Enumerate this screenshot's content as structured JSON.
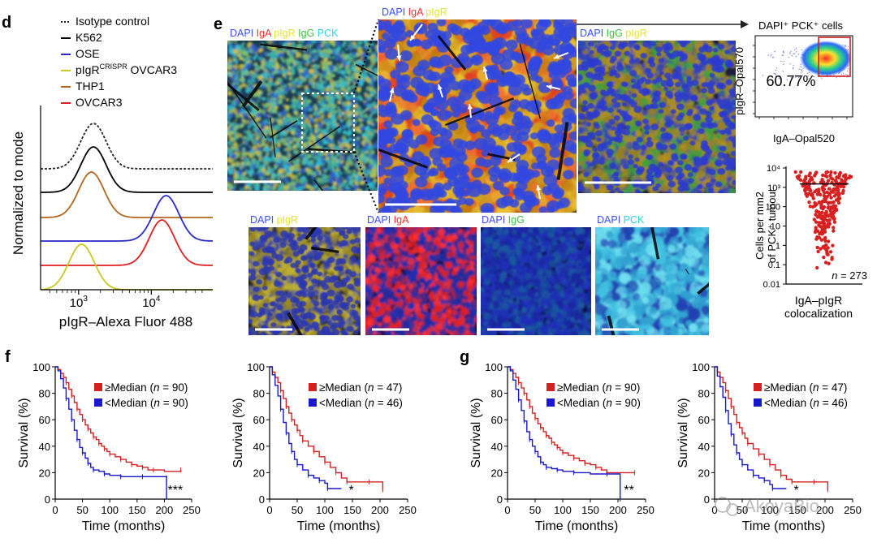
{
  "panel_letters": {
    "d": "d",
    "e": "e",
    "f": "f",
    "g": "g"
  },
  "chart_data": [
    {
      "id": "d",
      "type": "histogram",
      "xlabel": "pIgR–Alexa Fluor 488",
      "ylabel": "Normalized to mode",
      "x_scale": "log",
      "x_ticks": [
        {
          "value": 1000,
          "base": "10",
          "exp": "3"
        },
        {
          "value": 10000,
          "base": "10",
          "exp": "4"
        }
      ],
      "legend_position": "top-left",
      "series": [
        {
          "name": "Isotype control",
          "color": "#222222",
          "dashed": true,
          "peak": 1600
        },
        {
          "name": "K562",
          "color": "#000000",
          "dashed": false,
          "peak": 1600
        },
        {
          "name": "OSE",
          "color": "#2a2ac8",
          "dashed": false,
          "peak": 16000
        },
        {
          "name": "pIgR",
          "name_sup": "CRISPR",
          "name_tail": " OVCAR3",
          "color": "#c8c820",
          "dashed": false,
          "peak": 1100
        },
        {
          "name": "THP1",
          "color": "#b5651d",
          "dashed": false,
          "peak": 1500
        },
        {
          "name": "OVCAR3",
          "color": "#e02020",
          "dashed": false,
          "peak": 14000
        }
      ]
    },
    {
      "id": "e-scatter",
      "type": "scatter",
      "title": "DAPI⁺ PCK⁺ cells",
      "xlabel": "IgA–Opal520",
      "ylabel": "pIgR–Opal570",
      "gate_percent": "60.77%"
    },
    {
      "id": "e-dot",
      "type": "dot",
      "ylabel_lines": [
        "Cells per mm2",
        "of PCK⁺ tumour"
      ],
      "y_scale": "log",
      "y_ticks": [
        "10⁴",
        "10³",
        "100",
        "10",
        "1",
        "0.1",
        "0.01"
      ],
      "y_range": [
        0.01,
        10000
      ],
      "xlabel_lines": [
        "IgA–pIgR",
        "colocalization"
      ],
      "n_label": "n",
      "n_value": " = 273"
    },
    {
      "id": "f-left",
      "type": "line",
      "xlabel": "Time (months)",
      "ylabel": "Survival (%)",
      "x_range": [
        0,
        250
      ],
      "y_range": [
        0,
        100
      ],
      "x_ticks": [
        "0",
        "50",
        "100",
        "150",
        "200",
        "250"
      ],
      "y_ticks": [
        "0",
        "20",
        "40",
        "60",
        "80",
        "100"
      ],
      "significance": "***",
      "series": [
        {
          "name": "≥Median",
          "n": "90",
          "color": "#d42020",
          "points": [
            [
              0,
              100
            ],
            [
              5,
              98
            ],
            [
              10,
              95
            ],
            [
              15,
              92
            ],
            [
              20,
              88
            ],
            [
              25,
              83
            ],
            [
              30,
              78
            ],
            [
              35,
              73
            ],
            [
              40,
              68
            ],
            [
              45,
              64
            ],
            [
              50,
              60
            ],
            [
              55,
              56
            ],
            [
              60,
              53
            ],
            [
              65,
              50
            ],
            [
              70,
              47
            ],
            [
              75,
              45
            ],
            [
              80,
              42
            ],
            [
              85,
              40
            ],
            [
              90,
              38
            ],
            [
              95,
              36
            ],
            [
              100,
              34
            ],
            [
              110,
              32
            ],
            [
              120,
              30
            ],
            [
              130,
              28
            ],
            [
              140,
              26
            ],
            [
              150,
              25
            ],
            [
              160,
              24
            ],
            [
              170,
              22
            ],
            [
              180,
              22
            ],
            [
              200,
              21
            ],
            [
              230,
              22
            ]
          ]
        },
        {
          "name": "<Median",
          "n": "90",
          "color": "#1818cc",
          "points": [
            [
              0,
              100
            ],
            [
              5,
              97
            ],
            [
              10,
              91
            ],
            [
              15,
              84
            ],
            [
              20,
              76
            ],
            [
              25,
              68
            ],
            [
              30,
              60
            ],
            [
              35,
              52
            ],
            [
              40,
              45
            ],
            [
              45,
              39
            ],
            [
              50,
              35
            ],
            [
              55,
              31
            ],
            [
              60,
              27
            ],
            [
              65,
              24
            ],
            [
              70,
              22
            ],
            [
              80,
              21
            ],
            [
              90,
              19
            ],
            [
              100,
              18
            ],
            [
              120,
              17
            ],
            [
              140,
              17
            ],
            [
              160,
              17
            ],
            [
              180,
              17
            ],
            [
              204,
              16
            ],
            [
              204,
              0
            ]
          ]
        }
      ]
    },
    {
      "id": "f-right",
      "type": "line",
      "xlabel": "Time (months)",
      "ylabel": "Survival (%)",
      "x_range": [
        0,
        250
      ],
      "y_range": [
        0,
        100
      ],
      "x_ticks": [
        "0",
        "50",
        "100",
        "150",
        "200",
        "250"
      ],
      "y_ticks": [
        "0",
        "20",
        "40",
        "60",
        "80",
        "100"
      ],
      "significance": "*",
      "series": [
        {
          "name": "≥Median",
          "n": "47",
          "color": "#d42020",
          "points": [
            [
              0,
              100
            ],
            [
              5,
              96
            ],
            [
              10,
              92
            ],
            [
              15,
              88
            ],
            [
              20,
              82
            ],
            [
              25,
              76
            ],
            [
              30,
              70
            ],
            [
              35,
              65
            ],
            [
              40,
              60
            ],
            [
              45,
              56
            ],
            [
              50,
              52
            ],
            [
              55,
              48
            ],
            [
              60,
              44
            ],
            [
              70,
              40
            ],
            [
              80,
              36
            ],
            [
              90,
              32
            ],
            [
              100,
              28
            ],
            [
              110,
              24
            ],
            [
              120,
              20
            ],
            [
              130,
              16
            ],
            [
              140,
              13
            ],
            [
              150,
              13
            ],
            [
              180,
              13
            ],
            [
              205,
              13
            ],
            [
              205,
              7
            ]
          ]
        },
        {
          "name": "<Median",
          "n": "46",
          "color": "#1818cc",
          "points": [
            [
              0,
              100
            ],
            [
              5,
              94
            ],
            [
              10,
              86
            ],
            [
              15,
              78
            ],
            [
              20,
              68
            ],
            [
              25,
              58
            ],
            [
              30,
              50
            ],
            [
              35,
              42
            ],
            [
              40,
              36
            ],
            [
              45,
              30
            ],
            [
              50,
              26
            ],
            [
              60,
              22
            ],
            [
              70,
              18
            ],
            [
              80,
              16
            ],
            [
              90,
              14
            ],
            [
              100,
              12
            ],
            [
              105,
              8
            ],
            [
              130,
              8
            ]
          ]
        }
      ]
    },
    {
      "id": "g-left",
      "type": "line",
      "xlabel": "Time (months)",
      "ylabel": "Survival (%)",
      "x_range": [
        0,
        250
      ],
      "y_range": [
        0,
        100
      ],
      "x_ticks": [
        "0",
        "50",
        "100",
        "150",
        "200",
        "250"
      ],
      "y_ticks": [
        "0",
        "20",
        "40",
        "60",
        "80",
        "100"
      ],
      "significance": "**",
      "series": [
        {
          "name": "≥Median",
          "n": "90",
          "color": "#d42020",
          "points": [
            [
              0,
              100
            ],
            [
              5,
              98
            ],
            [
              10,
              95
            ],
            [
              15,
              92
            ],
            [
              20,
              88
            ],
            [
              25,
              84
            ],
            [
              30,
              80
            ],
            [
              35,
              75
            ],
            [
              40,
              70
            ],
            [
              45,
              65
            ],
            [
              50,
              61
            ],
            [
              55,
              57
            ],
            [
              60,
              54
            ],
            [
              65,
              51
            ],
            [
              70,
              48
            ],
            [
              75,
              46
            ],
            [
              80,
              43
            ],
            [
              85,
              41
            ],
            [
              90,
              39
            ],
            [
              95,
              37
            ],
            [
              100,
              35
            ],
            [
              110,
              33
            ],
            [
              120,
              31
            ],
            [
              130,
              29
            ],
            [
              140,
              27
            ],
            [
              150,
              26
            ],
            [
              160,
              24
            ],
            [
              170,
              22
            ],
            [
              180,
              20
            ],
            [
              200,
              20
            ],
            [
              230,
              20
            ]
          ]
        },
        {
          "name": "<Median",
          "n": "90",
          "color": "#1818cc",
          "points": [
            [
              0,
              100
            ],
            [
              5,
              97
            ],
            [
              10,
              90
            ],
            [
              15,
              83
            ],
            [
              20,
              75
            ],
            [
              25,
              67
            ],
            [
              30,
              59
            ],
            [
              35,
              51
            ],
            [
              40,
              45
            ],
            [
              45,
              40
            ],
            [
              50,
              36
            ],
            [
              55,
              32
            ],
            [
              60,
              28
            ],
            [
              65,
              26
            ],
            [
              70,
              24
            ],
            [
              80,
              23
            ],
            [
              90,
              22
            ],
            [
              100,
              21
            ],
            [
              120,
              20
            ],
            [
              150,
              19
            ],
            [
              180,
              19
            ],
            [
              204,
              19
            ],
            [
              204,
              0
            ]
          ]
        }
      ]
    },
    {
      "id": "g-right",
      "type": "line",
      "xlabel": "Time (months)",
      "ylabel": "Survival (%)",
      "x_range": [
        0,
        250
      ],
      "y_range": [
        0,
        100
      ],
      "x_ticks": [
        "0",
        "50",
        "100",
        "150",
        "200",
        "250"
      ],
      "y_ticks": [
        "0",
        "20",
        "40",
        "60",
        "80",
        "100"
      ],
      "significance": "*",
      "series": [
        {
          "name": "≥Median",
          "n": "47",
          "color": "#d42020",
          "points": [
            [
              0,
              100
            ],
            [
              5,
              96
            ],
            [
              10,
              92
            ],
            [
              15,
              88
            ],
            [
              20,
              82
            ],
            [
              25,
              76
            ],
            [
              30,
              70
            ],
            [
              35,
              64
            ],
            [
              40,
              58
            ],
            [
              45,
              54
            ],
            [
              50,
              50
            ],
            [
              55,
              46
            ],
            [
              60,
              42
            ],
            [
              70,
              38
            ],
            [
              80,
              34
            ],
            [
              90,
              30
            ],
            [
              100,
              26
            ],
            [
              110,
              22
            ],
            [
              120,
              18
            ],
            [
              130,
              15
            ],
            [
              140,
              13
            ],
            [
              150,
              13
            ],
            [
              180,
              13
            ],
            [
              205,
              13
            ],
            [
              205,
              7
            ]
          ]
        },
        {
          "name": "<Median",
          "n": "46",
          "color": "#1818cc",
          "points": [
            [
              0,
              100
            ],
            [
              5,
              93
            ],
            [
              10,
              85
            ],
            [
              15,
              77
            ],
            [
              20,
              67
            ],
            [
              25,
              57
            ],
            [
              30,
              49
            ],
            [
              35,
              41
            ],
            [
              40,
              35
            ],
            [
              45,
              30
            ],
            [
              50,
              26
            ],
            [
              60,
              22
            ],
            [
              70,
              18
            ],
            [
              80,
              16
            ],
            [
              90,
              14
            ],
            [
              100,
              11
            ],
            [
              105,
              8
            ],
            [
              130,
              8
            ]
          ]
        }
      ]
    }
  ],
  "micrographs": {
    "large": [
      {
        "id": "overview",
        "labels": [
          {
            "text": "DAPI",
            "color": "#3a50ff"
          },
          {
            "text": "IgA",
            "color": "#ff3030"
          },
          {
            "text": "pIgR",
            "color": "#e8e030"
          },
          {
            "text": "IgG",
            "color": "#40c040"
          },
          {
            "text": "PCK",
            "color": "#30d0e0"
          }
        ]
      },
      {
        "id": "zoom",
        "labels": [
          {
            "text": "DAPI",
            "color": "#3a50ff"
          },
          {
            "text": "IgA",
            "color": "#ff3030"
          },
          {
            "text": "pIgR",
            "color": "#e8e030"
          }
        ]
      },
      {
        "id": "igg",
        "labels": [
          {
            "text": "DAPI",
            "color": "#3a50ff"
          },
          {
            "text": "IgG",
            "color": "#40c040"
          },
          {
            "text": "pIgR",
            "color": "#e8e030"
          }
        ]
      }
    ],
    "small": [
      {
        "id": "pigr",
        "labels": [
          {
            "text": "DAPI",
            "color": "#3a50ff"
          },
          {
            "text": "pIgR",
            "color": "#e8e030"
          }
        ]
      },
      {
        "id": "iga",
        "labels": [
          {
            "text": "DAPI",
            "color": "#3a50ff"
          },
          {
            "text": "IgA",
            "color": "#ff3030"
          }
        ]
      },
      {
        "id": "igg-small",
        "labels": [
          {
            "text": "DAPI",
            "color": "#3a50ff"
          },
          {
            "text": "IgG",
            "color": "#40c040"
          }
        ]
      },
      {
        "id": "pck",
        "labels": [
          {
            "text": "DAPI",
            "color": "#3a50ff"
          },
          {
            "text": "PCK",
            "color": "#30d0e0"
          }
        ]
      }
    ]
  },
  "watermark": "AkoyaBio"
}
